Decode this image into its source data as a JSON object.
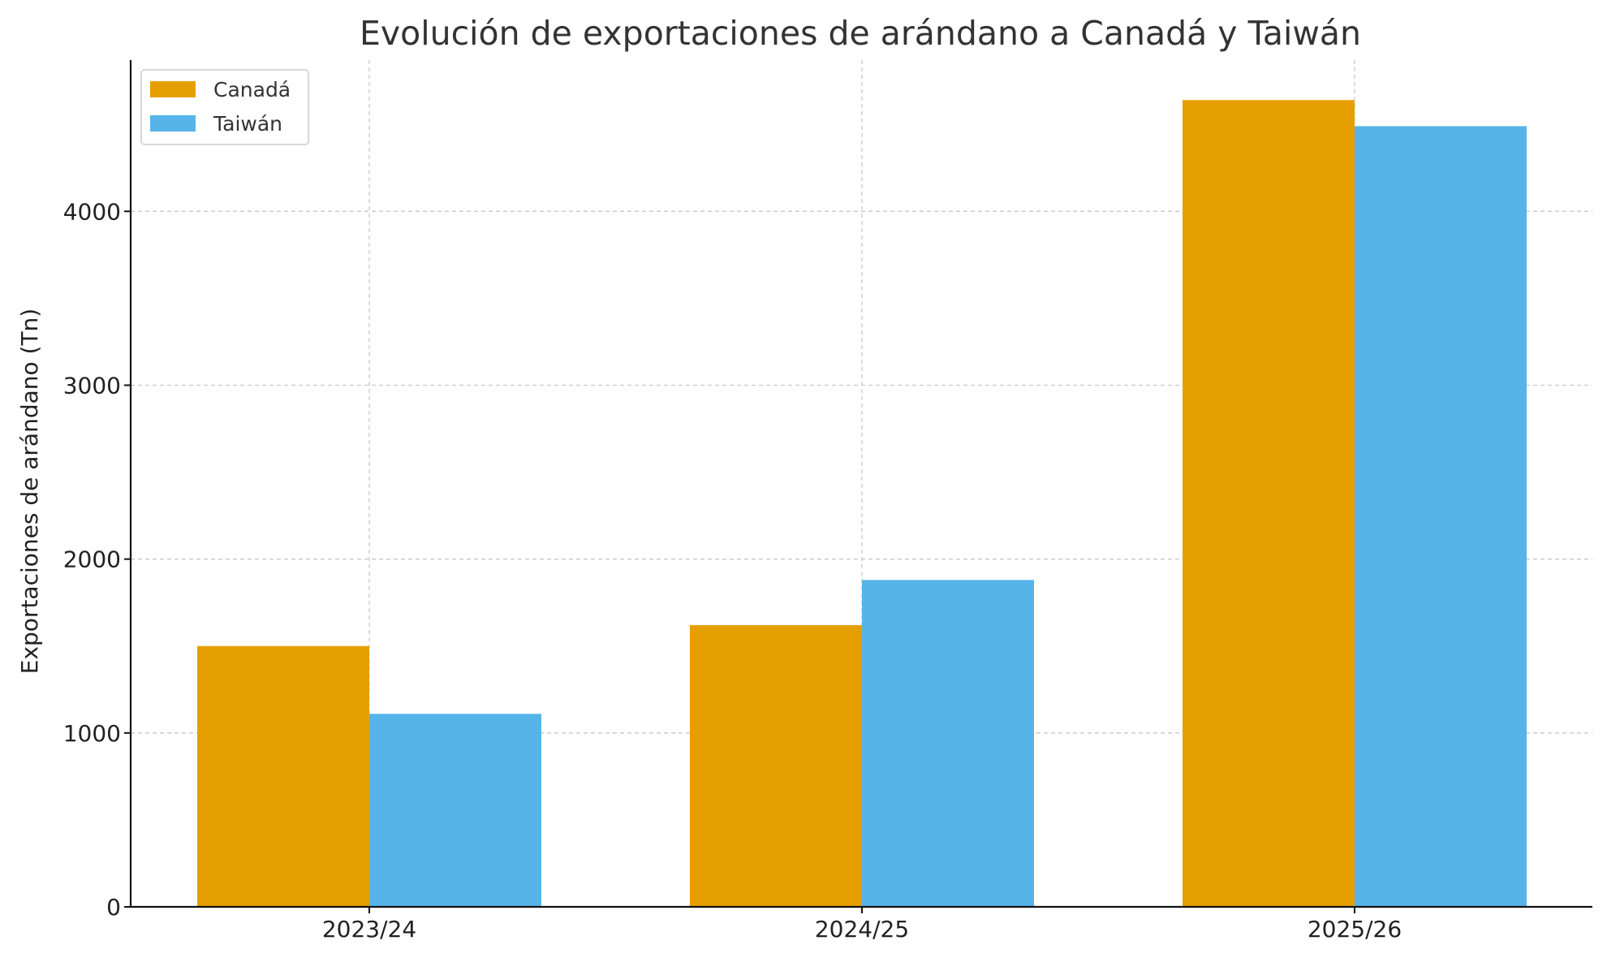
{
  "chart_data": {
    "type": "bar",
    "title": "Evolución de exportaciones de arándano a Canadá y Taiwán",
    "xlabel": "",
    "ylabel": "Exportaciones de arándano (Tn)",
    "categories": [
      "2023/24",
      "2024/25",
      "2025/26"
    ],
    "series": [
      {
        "name": "Canadá",
        "color": "#E69F00",
        "values": [
          1500,
          1620,
          4640
        ]
      },
      {
        "name": "Taiwán",
        "color": "#56B4E9",
        "values": [
          1110,
          1880,
          4490
        ]
      }
    ],
    "ylim": [
      0,
      4870
    ],
    "yticks": [
      0,
      1000,
      2000,
      3000,
      4000
    ],
    "grid": true,
    "legend_position": "top-left"
  }
}
